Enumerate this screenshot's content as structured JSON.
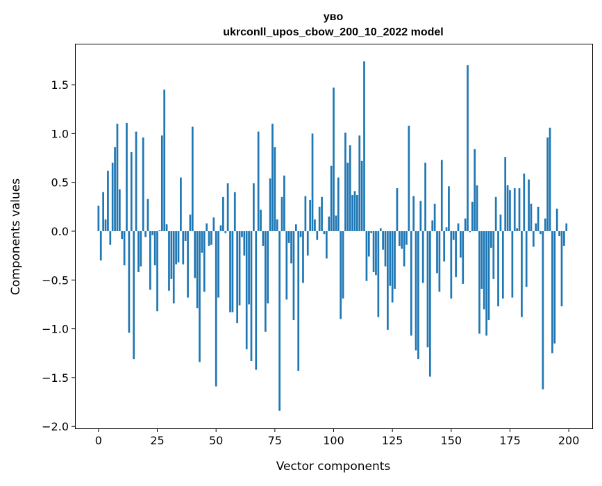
{
  "chart_data": {
    "type": "bar",
    "title": "увo",
    "subtitle": "ukrconll_upos_cbow_200_10_2022 model",
    "xlabel": "Vector components",
    "ylabel": "Components values",
    "xlim": [
      -10,
      210
    ],
    "ylim": [
      -2.02,
      1.92
    ],
    "xticks": [
      0,
      25,
      50,
      75,
      100,
      125,
      150,
      175,
      200
    ],
    "xtick_labels": [
      "0",
      "25",
      "50",
      "75",
      "100",
      "125",
      "150",
      "175",
      "200"
    ],
    "yticks": [
      -2.0,
      -1.5,
      -1.0,
      -0.5,
      0.0,
      0.5,
      1.0,
      1.5
    ],
    "ytick_labels": [
      "−2.0",
      "−1.5",
      "−1.0",
      "−0.5",
      "0.0",
      "0.5",
      "1.0",
      "1.5"
    ],
    "grid": false,
    "bar_color": "#1f77b4",
    "values": [
      0.26,
      -0.3,
      0.4,
      0.12,
      0.62,
      -0.14,
      0.7,
      0.86,
      1.1,
      0.43,
      -0.08,
      -0.35,
      1.11,
      -1.04,
      0.81,
      -1.31,
      1.02,
      -0.42,
      -0.36,
      0.96,
      -0.06,
      0.33,
      -0.6,
      -0.04,
      -0.35,
      -0.82,
      0.01,
      0.98,
      1.45,
      0.07,
      -0.61,
      -0.49,
      -0.74,
      -0.34,
      -0.32,
      0.55,
      -0.34,
      -0.1,
      -0.68,
      0.17,
      1.07,
      -0.48,
      -0.79,
      -1.34,
      -0.22,
      -0.62,
      0.08,
      -0.15,
      -0.14,
      0.14,
      -1.59,
      -0.68,
      0.06,
      0.35,
      -0.02,
      0.49,
      -0.83,
      -0.83,
      0.4,
      -0.94,
      -0.76,
      -0.06,
      -0.25,
      -1.21,
      -0.75,
      -1.33,
      0.49,
      -1.42,
      1.02,
      0.22,
      -0.15,
      -1.03,
      -0.74,
      0.54,
      1.1,
      0.86,
      0.12,
      -1.84,
      0.35,
      0.57,
      -0.7,
      -0.12,
      -0.33,
      -0.91,
      0.07,
      -1.43,
      -0.06,
      -0.53,
      0.36,
      -0.25,
      0.32,
      1.0,
      0.12,
      -0.09,
      0.25,
      0.35,
      -0.03,
      -0.28,
      0.15,
      0.67,
      1.47,
      0.16,
      0.55,
      -0.9,
      -0.69,
      1.01,
      0.7,
      0.88,
      0.37,
      0.41,
      0.37,
      0.98,
      0.72,
      1.74,
      -0.51,
      -0.26,
      -0.02,
      -0.42,
      -0.45,
      -0.88,
      0.03,
      -0.19,
      -0.36,
      -1.01,
      -0.56,
      -0.73,
      -0.59,
      0.44,
      -0.15,
      -0.18,
      -0.36,
      -0.14,
      1.08,
      -1.07,
      0.36,
      -1.22,
      -1.31,
      0.31,
      -0.53,
      0.7,
      -1.19,
      -1.49,
      0.11,
      0.28,
      -0.43,
      -0.62,
      0.73,
      -0.31,
      0.04,
      0.46,
      -0.69,
      -0.09,
      -0.47,
      0.08,
      -0.27,
      -0.54,
      0.13,
      1.7,
      -0.01,
      0.3,
      0.84,
      0.47,
      -1.05,
      -0.59,
      -0.8,
      -1.07,
      -0.91,
      -0.17,
      -0.49,
      0.35,
      -0.77,
      0.17,
      -0.69,
      0.76,
      0.47,
      0.42,
      -0.68,
      0.44,
      0.03,
      0.44,
      -0.88,
      0.59,
      -0.57,
      0.53,
      0.28,
      -0.16,
      0.08,
      0.25,
      -0.03,
      -1.62,
      0.13,
      0.96,
      1.06,
      -1.25,
      -1.15,
      0.23,
      -0.05,
      -0.77,
      -0.15,
      0.08
    ]
  }
}
